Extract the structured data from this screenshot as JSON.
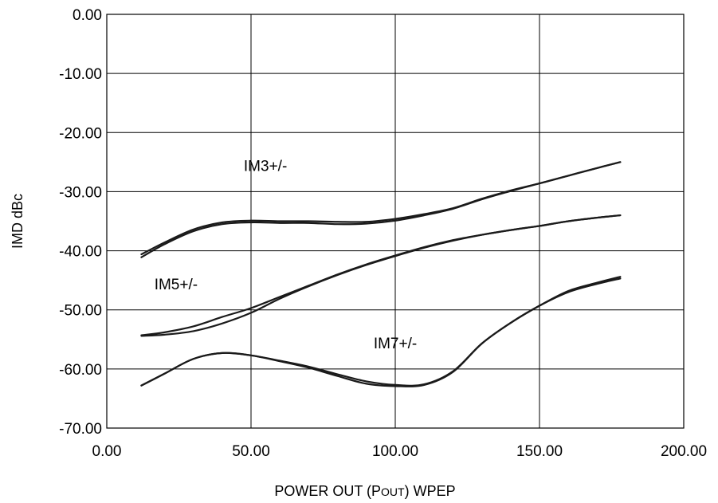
{
  "chart_data": {
    "type": "line",
    "title": "",
    "xlabel": "POWER OUT (POUT) WPEP",
    "xlabel_parts": {
      "before": "POWER OUT (P",
      "subscript": "OUT",
      "after": ") WPEP"
    },
    "ylabel": "IMD dBc",
    "xlim": [
      0,
      200
    ],
    "ylim": [
      -70,
      0
    ],
    "x_ticks": [
      0,
      50,
      100,
      150,
      200
    ],
    "y_ticks": [
      0,
      -10,
      -20,
      -30,
      -40,
      -50,
      -60,
      -70
    ],
    "x_tick_labels": [
      "0.00",
      "50.00",
      "100.00",
      "150.00",
      "200.00"
    ],
    "y_tick_labels": [
      "0.00",
      "-10.00",
      "-20.00",
      "-30.00",
      "-40.00",
      "-50.00",
      "-60.00",
      "-70.00"
    ],
    "grid": true,
    "series": [
      {
        "x": [
          12,
          20,
          30,
          40,
          50,
          60,
          70,
          80,
          90,
          100,
          110,
          120,
          130,
          140,
          150,
          160,
          170,
          178
        ],
        "values": [
          -40.6,
          -38.6,
          -36.4,
          -35.2,
          -34.9,
          -35.0,
          -35.0,
          -35.1,
          -35.1,
          -34.6,
          -33.8,
          -32.8,
          -31.2,
          -29.8,
          -28.6,
          -27.3,
          -26.0,
          -25.0
        ]
      },
      {
        "x": [
          12,
          20,
          30,
          40,
          50,
          60,
          70,
          80,
          90,
          100,
          110,
          120,
          130,
          140,
          150,
          160,
          170,
          178
        ],
        "values": [
          -41.1,
          -38.9,
          -36.7,
          -35.5,
          -35.2,
          -35.3,
          -35.3,
          -35.5,
          -35.4,
          -34.9,
          -34.0,
          -32.9,
          -31.3,
          -29.9,
          -28.6,
          -27.3,
          -26.0,
          -25.0
        ]
      },
      {
        "x": [
          12,
          20,
          30,
          40,
          50,
          60,
          70,
          80,
          90,
          100,
          110,
          120,
          130,
          140,
          150,
          160,
          170,
          178
        ],
        "values": [
          -54.3,
          -53.8,
          -52.8,
          -51.2,
          -49.7,
          -47.8,
          -45.9,
          -44.0,
          -42.3,
          -40.8,
          -39.4,
          -38.2,
          -37.3,
          -36.5,
          -35.8,
          -35.0,
          -34.4,
          -34.0
        ]
      },
      {
        "x": [
          12,
          20,
          30,
          40,
          50,
          60,
          70,
          80,
          90,
          100,
          110,
          120,
          130,
          140,
          150,
          160,
          170,
          178
        ],
        "values": [
          -54.4,
          -54.2,
          -53.6,
          -52.3,
          -50.5,
          -48.1,
          -46.0,
          -44.1,
          -42.4,
          -40.9,
          -39.5,
          -38.3,
          -37.3,
          -36.5,
          -35.8,
          -35.0,
          -34.4,
          -34.0
        ]
      },
      {
        "x": [
          12,
          20,
          30,
          40,
          50,
          60,
          70,
          80,
          90,
          100,
          110,
          120,
          130,
          140,
          150,
          160,
          170,
          178
        ],
        "values": [
          -62.8,
          -60.8,
          -58.3,
          -57.3,
          -57.7,
          -58.6,
          -59.6,
          -60.9,
          -62.1,
          -62.7,
          -62.6,
          -60.4,
          -55.7,
          -52.2,
          -49.3,
          -47.0,
          -45.6,
          -44.7
        ]
      },
      {
        "x": [
          12,
          20,
          30,
          40,
          50,
          60,
          70,
          80,
          90,
          100,
          110,
          120,
          130,
          140,
          150,
          160,
          170,
          178
        ],
        "values": [
          -62.8,
          -60.8,
          -58.3,
          -57.3,
          -57.7,
          -58.7,
          -59.8,
          -61.2,
          -62.5,
          -62.9,
          -62.7,
          -60.5,
          -55.7,
          -52.2,
          -49.3,
          -46.8,
          -45.4,
          -44.4
        ]
      }
    ],
    "annotations": [
      {
        "text": "IM3+/-",
        "x": 55,
        "y": -26.5
      },
      {
        "text": "IM5+/-",
        "x": 24,
        "y": -46.5
      },
      {
        "text": "IM7+/-",
        "x": 100,
        "y": -56.5
      }
    ]
  }
}
